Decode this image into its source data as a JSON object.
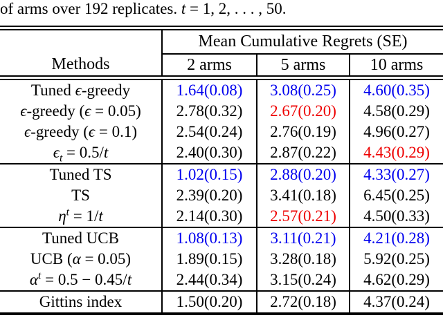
{
  "caption": {
    "pre": "of arms over 192 replicates. ",
    "var": "t",
    "post": " = 1, 2, . . . , 50."
  },
  "header": {
    "group": "Mean Cumulative Regrets (SE)",
    "methods": "Methods",
    "cols": [
      "2 arms",
      "5 arms",
      "10 arms"
    ]
  },
  "palette": {
    "best_value": "#0000ee",
    "worst_value": "#ee0000",
    "normal_value": "#000000"
  },
  "rows": [
    {
      "method": {
        "a": "Tuned ",
        "b": "ϵ",
        "e": "-greedy"
      },
      "v1": {
        "v": "1.64(0.08)",
        "c": "#0000ee"
      },
      "v2": {
        "v": "3.08(0.25)",
        "c": "#0000ee"
      },
      "v3": {
        "v": "4.60(0.35)",
        "c": "#0000ee"
      }
    },
    {
      "method": {
        "b": "ϵ",
        "e": "-greedy (",
        "f": "ϵ",
        "g": " = 0.05)"
      },
      "v1": {
        "v": "2.78(0.32)"
      },
      "v2": {
        "v": "2.67(0.20)",
        "c": "#ee0000"
      },
      "v3": {
        "v": "4.58(0.29)"
      }
    },
    {
      "method": {
        "b": "ϵ",
        "e": "-greedy (",
        "f": "ϵ",
        "g": " = 0.1)"
      },
      "v1": {
        "v": "2.54(0.24)"
      },
      "v2": {
        "v": "2.76(0.19)"
      },
      "v3": {
        "v": "4.96(0.27)"
      }
    },
    {
      "method": {
        "b": "ϵ",
        "c": "t",
        "e": " = 0.5/",
        "f": "t"
      },
      "v1": {
        "v": "2.40(0.30)"
      },
      "v2": {
        "v": "2.87(0.22)"
      },
      "v3": {
        "v": "4.43(0.29)",
        "c": "#ee0000"
      }
    },
    {
      "method": {
        "a": "Tuned TS"
      },
      "v1": {
        "v": "1.02(0.15)",
        "c": "#0000ee"
      },
      "v2": {
        "v": "2.88(0.20)",
        "c": "#0000ee"
      },
      "v3": {
        "v": "4.33(0.27)",
        "c": "#0000ee"
      }
    },
    {
      "method": {
        "a": "TS"
      },
      "v1": {
        "v": "2.39(0.20)"
      },
      "v2": {
        "v": "3.41(0.18)"
      },
      "v3": {
        "v": "6.45(0.25)"
      }
    },
    {
      "method": {
        "b": "η",
        "d": "t",
        "e": " = 1/",
        "f": "t"
      },
      "v1": {
        "v": "2.14(0.30)"
      },
      "v2": {
        "v": "2.57(0.21)",
        "c": "#ee0000"
      },
      "v3": {
        "v": "4.50(0.33)"
      }
    },
    {
      "method": {
        "a": "Tuned UCB"
      },
      "v1": {
        "v": "1.08(0.13)",
        "c": "#0000ee"
      },
      "v2": {
        "v": "3.11(0.21)",
        "c": "#0000ee"
      },
      "v3": {
        "v": "4.21(0.28)",
        "c": "#0000ee"
      }
    },
    {
      "method": {
        "a": "UCB (",
        "b": "α",
        "e": " = 0.05)"
      },
      "v1": {
        "v": "1.89(0.15)"
      },
      "v2": {
        "v": "3.28(0.18)"
      },
      "v3": {
        "v": "5.92(0.25)"
      }
    },
    {
      "method": {
        "b": "α",
        "d": "t",
        "e": " = 0.5 − 0.45/",
        "f": "t"
      },
      "v1": {
        "v": "2.44(0.34)"
      },
      "v2": {
        "v": "3.15(0.24)"
      },
      "v3": {
        "v": "4.62(0.29)"
      }
    },
    {
      "method": {
        "a": "Gittins index"
      },
      "v1": {
        "v": "1.50(0.20)"
      },
      "v2": {
        "v": "2.72(0.18)"
      },
      "v3": {
        "v": "4.37(0.24)"
      }
    }
  ]
}
